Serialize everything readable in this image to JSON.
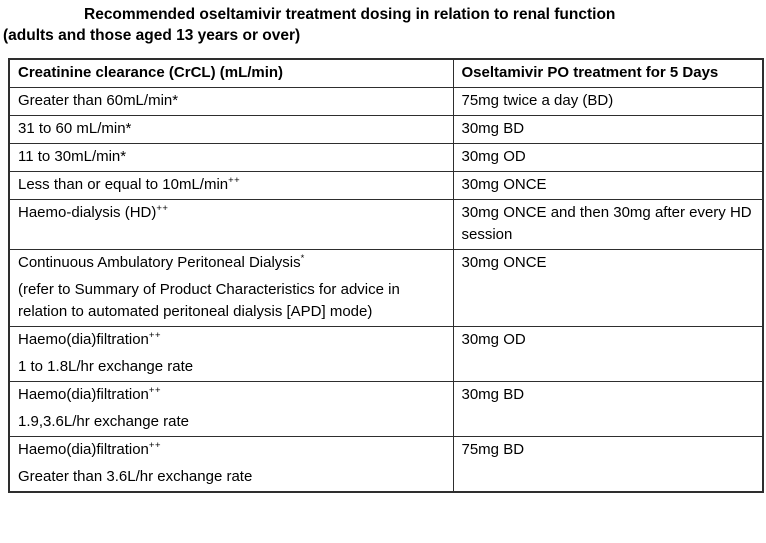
{
  "title": {
    "line1": "Recommended oseltamivir treatment dosing in relation to renal function",
    "line2": "(adults and those aged 13 years or over)"
  },
  "table": {
    "headers": {
      "col1": "Creatinine clearance (CrCL) (mL/min)",
      "col2": "Oseltamivir PO treatment for 5 Days"
    },
    "rows": [
      {
        "crcl": [
          {
            "text": "Greater than 60mL/min*"
          }
        ],
        "dose": [
          {
            "text": "75mg twice a day (BD)"
          }
        ]
      },
      {
        "crcl": [
          {
            "text": "31 to 60 mL/min*"
          }
        ],
        "dose": [
          {
            "text": "30mg BD"
          }
        ]
      },
      {
        "crcl": [
          {
            "text": "11 to 30mL/min*"
          }
        ],
        "dose": [
          {
            "text": "30mg OD"
          }
        ]
      },
      {
        "crcl": [
          {
            "text": "Less than or equal to 10mL/min",
            "sup": "++"
          }
        ],
        "dose": [
          {
            "text": "30mg ONCE"
          }
        ]
      },
      {
        "crcl": [
          {
            "text": "Haemo-dialysis (HD)",
            "sup": "++"
          }
        ],
        "dose": [
          {
            "text": "30mg ONCE and then 30mg after every HD session"
          }
        ]
      },
      {
        "crcl": [
          {
            "text": "Continuous Ambulatory Peritoneal Dialysis",
            "sup": "*"
          },
          {
            "text": "(refer to Summary of Product Characteristics for advice in relation to automated peritoneal dialysis [APD] mode)"
          }
        ],
        "dose": [
          {
            "text": "30mg ONCE"
          }
        ]
      },
      {
        "crcl": [
          {
            "text": "Haemo(dia)filtration",
            "sup": "++"
          },
          {
            "text": "1 to 1.8L/hr exchange rate"
          }
        ],
        "dose": [
          {
            "text": "30mg OD"
          }
        ]
      },
      {
        "crcl": [
          {
            "text": "Haemo(dia)filtration",
            "sup": "++"
          },
          {
            "text": "1.9,3.6L/hr exchange rate"
          }
        ],
        "dose": [
          {
            "text": "30mg BD"
          }
        ]
      },
      {
        "crcl": [
          {
            "text": "Haemo(dia)filtration",
            "sup": "++"
          },
          {
            "text": "Greater than 3.6L/hr exchange rate"
          }
        ],
        "dose": [
          {
            "text": "75mg BD"
          }
        ]
      }
    ]
  },
  "colors": {
    "background": "#ffffff",
    "text": "#000000",
    "border": "#2e2e2e"
  }
}
